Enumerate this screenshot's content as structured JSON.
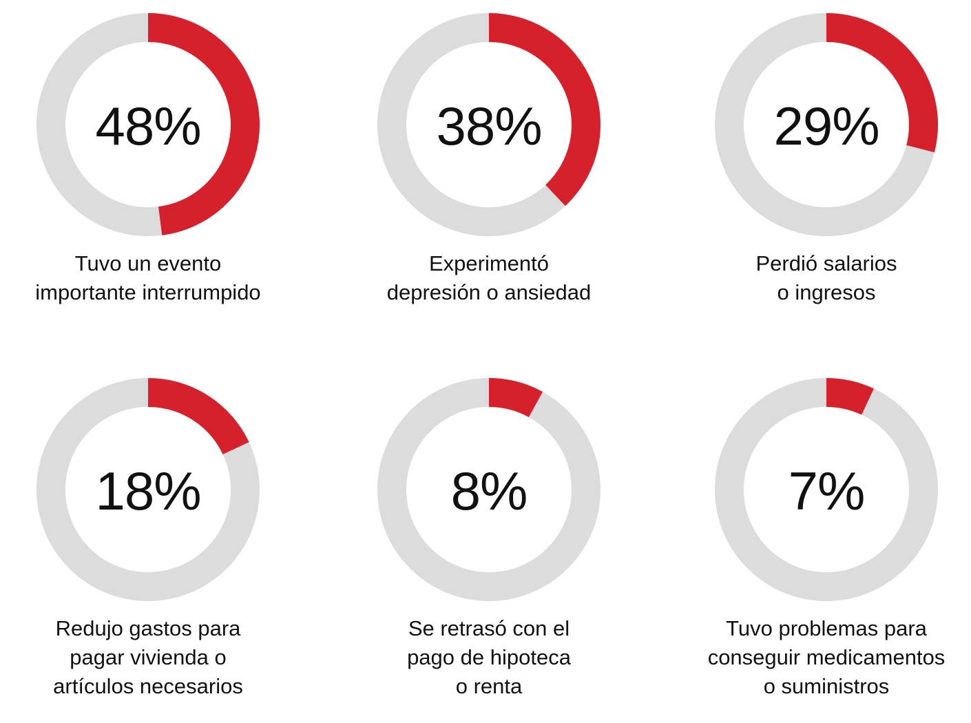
{
  "colors": {
    "accent": "#d6202b",
    "track": "#dcdcdd"
  },
  "chart_data": [
    {
      "type": "pie",
      "value": 48,
      "display": "48%",
      "label_lines": [
        "Tuvo un evento",
        "importante interrumpido"
      ]
    },
    {
      "type": "pie",
      "value": 38,
      "display": "38%",
      "label_lines": [
        "Experimentó",
        "depresión o ansiedad"
      ]
    },
    {
      "type": "pie",
      "value": 29,
      "display": "29%",
      "label_lines": [
        "Perdió salarios",
        "o ingresos"
      ]
    },
    {
      "type": "pie",
      "value": 18,
      "display": "18%",
      "label_lines": [
        "Redujo gastos para",
        "pagar vivienda o",
        "artículos necesarios"
      ]
    },
    {
      "type": "pie",
      "value": 8,
      "display": "8%",
      "label_lines": [
        "Se retrasó con el",
        "pago de hipoteca",
        "o renta"
      ]
    },
    {
      "type": "pie",
      "value": 7,
      "display": "7%",
      "label_lines": [
        "Tuvo problemas para",
        "conseguir medicamentos",
        "o suministros"
      ]
    }
  ]
}
